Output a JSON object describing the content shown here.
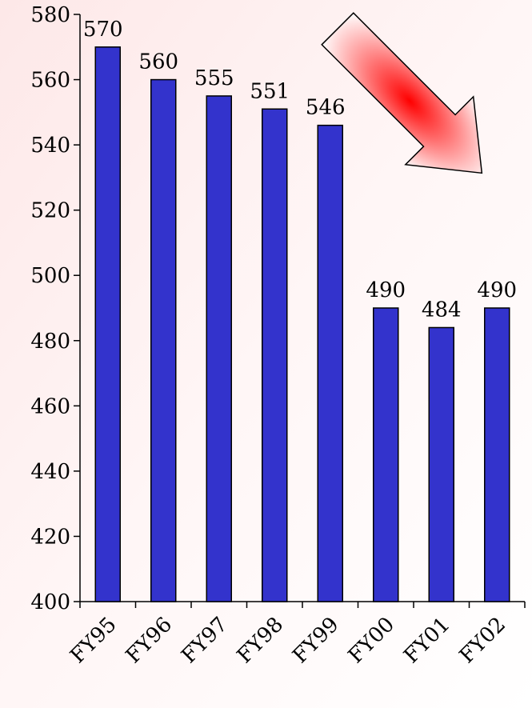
{
  "chart_data": {
    "type": "bar",
    "categories": [
      "FY95",
      "FY96",
      "FY97",
      "FY98",
      "FY99",
      "FY00",
      "FY01",
      "FY02"
    ],
    "values": [
      570,
      560,
      555,
      551,
      546,
      490,
      484,
      490
    ],
    "data_labels": [
      "570",
      "560",
      "555",
      "551",
      "546",
      "490",
      "484",
      "490"
    ],
    "y_ticks": [
      "400",
      "420",
      "440",
      "460",
      "480",
      "500",
      "520",
      "540",
      "560",
      "580"
    ],
    "ylim": [
      400,
      580
    ],
    "title": "",
    "xlabel": "",
    "ylabel": "",
    "grid": false,
    "legend": "none",
    "colors": {
      "bar": "#3333cc",
      "bar_stroke": "#000000",
      "arrow_center": "#ff0000",
      "background_tint": "#fff0f0"
    },
    "annotation": {
      "type": "downward-trend-arrow",
      "direction": "down-right"
    }
  }
}
